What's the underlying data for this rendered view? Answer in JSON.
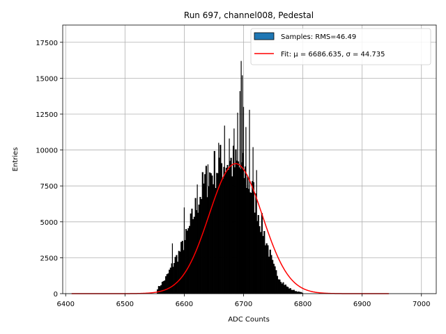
{
  "chart_data": {
    "type": "bar",
    "title": "Run 697, channel008, Pedestal",
    "xlabel": "ADC Counts",
    "ylabel": "Entries",
    "xlim": [
      6395,
      7025
    ],
    "ylim": [
      0,
      18700
    ],
    "xticks": [
      6400,
      6500,
      6600,
      6700,
      6800,
      6900,
      7000
    ],
    "yticks": [
      0,
      2500,
      5000,
      7500,
      10000,
      12500,
      15000,
      17500
    ],
    "xtick_labels": [
      "6400",
      "6500",
      "6600",
      "6700",
      "6800",
      "6900",
      "7000"
    ],
    "ytick_labels": [
      "0",
      "2500",
      "5000",
      "7500",
      "10000",
      "12500",
      "15000",
      "17500"
    ],
    "grid": true,
    "legend_placement": "upper-right",
    "series": [
      {
        "name": "Samples: RMS=46.49",
        "kind": "histogram",
        "color": "#000000",
        "legend_swatch_color": "#1f77b4",
        "bin_width": 2,
        "x": [
          6554,
          6560,
          6566,
          6572,
          6578,
          6584,
          6590,
          6596,
          6602,
          6606,
          6610,
          6614,
          6618,
          6622,
          6626,
          6630,
          6634,
          6638,
          6642,
          6646,
          6650,
          6654,
          6658,
          6662,
          6666,
          6670,
          6674,
          6678,
          6682,
          6686,
          6690,
          6694,
          6698,
          6702,
          6706,
          6710,
          6714,
          6718,
          6722,
          6726,
          6730,
          6734,
          6738,
          6742,
          6746,
          6750,
          6756,
          6762,
          6768,
          6774,
          6780,
          6790,
          6800
        ],
        "values": [
          300,
          600,
          900,
          1300,
          1800,
          2300,
          2700,
          3200,
          3800,
          4200,
          4700,
          5300,
          5800,
          6300,
          6800,
          7200,
          7600,
          7900,
          8200,
          8400,
          8600,
          8800,
          8900,
          9000,
          9100,
          9200,
          9200,
          9100,
          9000,
          8900,
          8800,
          8700,
          8500,
          8300,
          8000,
          7600,
          7200,
          6700,
          6100,
          5500,
          4900,
          4300,
          3700,
          3100,
          2500,
          1900,
          1400,
          1000,
          700,
          450,
          300,
          150,
          60
        ],
        "spikes_x": [
          6580,
          6600,
          6622,
          6640,
          6658,
          6668,
          6676,
          6684,
          6690,
          6694,
          6696,
          6698,
          6700,
          6704,
          6710,
          6716,
          6722
        ],
        "spikes_values": [
          3500,
          6000,
          7600,
          9000,
          10500,
          11700,
          10800,
          11500,
          12600,
          14100,
          16200,
          15200,
          13000,
          11600,
          12800,
          10200,
          8600
        ]
      },
      {
        "name": "Fit: μ = 6686.635, σ = 44.735",
        "kind": "gaussian",
        "color": "#ff0000",
        "mu": 6686.635,
        "sigma": 44.735,
        "amplitude": 9050,
        "x_range": [
          6410,
          6945
        ]
      }
    ]
  }
}
